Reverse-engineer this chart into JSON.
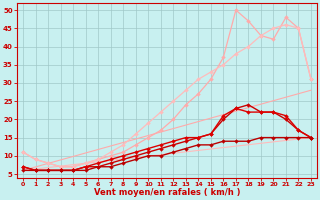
{
  "bg_color": "#c8f0f0",
  "grid_color": "#a0c8c8",
  "xlabel": "Vent moyen/en rafales ( km/h )",
  "xlabel_color": "#cc0000",
  "tick_color": "#cc0000",
  "xlim": [
    -0.5,
    23.5
  ],
  "ylim": [
    4,
    52
  ],
  "yticks": [
    5,
    10,
    15,
    20,
    25,
    30,
    35,
    40,
    45,
    50
  ],
  "xticks": [
    0,
    1,
    2,
    3,
    4,
    5,
    6,
    7,
    8,
    9,
    10,
    11,
    12,
    13,
    14,
    15,
    16,
    17,
    18,
    19,
    20,
    21,
    22,
    23
  ],
  "series": [
    {
      "x": [
        0,
        23
      ],
      "y": [
        6,
        15
      ],
      "color": "#ffbbbb",
      "alpha": 1.0,
      "lw": 0.8,
      "marker": null
    },
    {
      "x": [
        0,
        23
      ],
      "y": [
        6,
        28
      ],
      "color": "#ffaaaa",
      "alpha": 1.0,
      "lw": 0.8,
      "marker": null
    },
    {
      "x": [
        0,
        1,
        2,
        3,
        4,
        5,
        6,
        7,
        8,
        9,
        10,
        11,
        12,
        13,
        14,
        15,
        16,
        17,
        18,
        19,
        20,
        21,
        22,
        23
      ],
      "y": [
        11,
        9,
        8,
        7,
        7,
        8,
        9,
        10,
        11,
        13,
        15,
        17,
        20,
        24,
        27,
        31,
        37,
        50,
        47,
        43,
        42,
        48,
        45,
        31
      ],
      "color": "#ffaaaa",
      "alpha": 1.0,
      "lw": 0.9,
      "marker": "D",
      "ms": 2.0
    },
    {
      "x": [
        0,
        1,
        2,
        3,
        4,
        5,
        6,
        7,
        8,
        9,
        10,
        11,
        12,
        13,
        14,
        15,
        16,
        17,
        18,
        19,
        20,
        21,
        22,
        23
      ],
      "y": [
        11,
        9,
        8,
        7,
        7,
        8,
        9,
        11,
        13,
        16,
        19,
        22,
        25,
        28,
        31,
        33,
        35,
        38,
        40,
        43,
        45,
        46,
        45,
        31
      ],
      "color": "#ffbbbb",
      "alpha": 1.0,
      "lw": 0.9,
      "marker": "D",
      "ms": 2.0
    },
    {
      "x": [
        0,
        1,
        2,
        3,
        4,
        5,
        6,
        7,
        8,
        9,
        10,
        11,
        12,
        13,
        14,
        15,
        16,
        17,
        18,
        19,
        20,
        21,
        22,
        23
      ],
      "y": [
        7,
        6,
        6,
        6,
        6,
        7,
        7,
        8,
        9,
        10,
        11,
        12,
        13,
        14,
        15,
        16,
        20,
        23,
        24,
        22,
        22,
        20,
        17,
        15
      ],
      "color": "#cc0000",
      "alpha": 1.0,
      "lw": 1.0,
      "marker": "D",
      "ms": 2.0
    },
    {
      "x": [
        0,
        1,
        2,
        3,
        4,
        5,
        6,
        7,
        8,
        9,
        10,
        11,
        12,
        13,
        14,
        15,
        16,
        17,
        18,
        19,
        20,
        21,
        22,
        23
      ],
      "y": [
        7,
        6,
        6,
        6,
        6,
        7,
        8,
        9,
        10,
        11,
        12,
        13,
        14,
        15,
        15,
        16,
        21,
        23,
        22,
        22,
        22,
        21,
        17,
        15
      ],
      "color": "#dd0000",
      "alpha": 1.0,
      "lw": 1.0,
      "marker": "D",
      "ms": 2.0
    },
    {
      "x": [
        0,
        1,
        2,
        3,
        4,
        5,
        6,
        7,
        8,
        9,
        10,
        11,
        12,
        13,
        14,
        15,
        16,
        17,
        18,
        19,
        20,
        21,
        22,
        23
      ],
      "y": [
        6,
        6,
        6,
        6,
        6,
        6,
        7,
        7,
        8,
        9,
        10,
        10,
        11,
        12,
        13,
        13,
        14,
        14,
        14,
        15,
        15,
        15,
        15,
        15
      ],
      "color": "#bb0000",
      "alpha": 1.0,
      "lw": 1.0,
      "marker": "D",
      "ms": 2.0
    }
  ]
}
